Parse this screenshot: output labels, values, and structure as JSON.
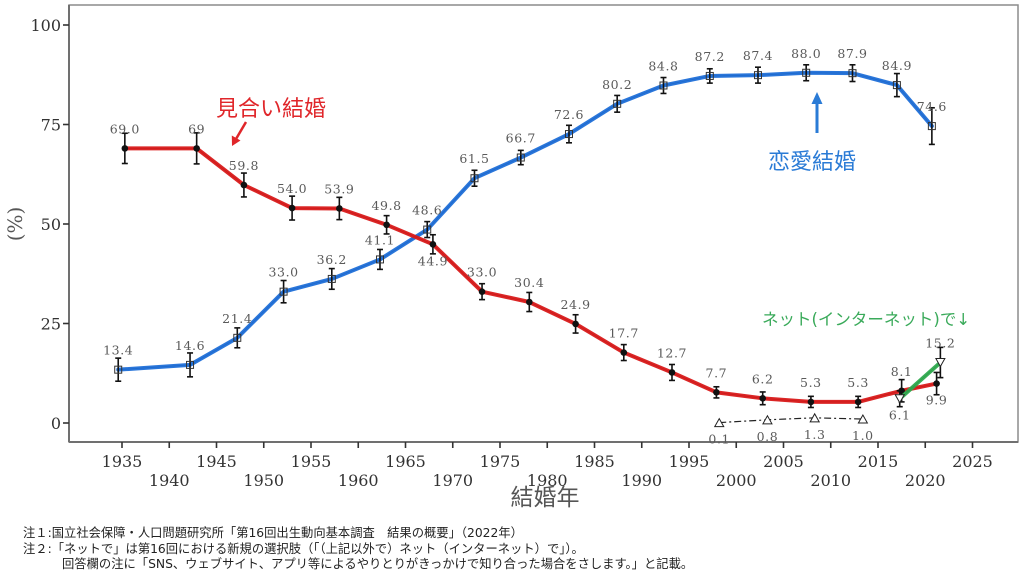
{
  "chart_data": {
    "type": "line",
    "title": "",
    "xlabel": "結婚年",
    "ylabel": "(%)",
    "xlim": [
      1929.4,
      2029.8
    ],
    "ylim": [
      -4.8,
      105
    ],
    "grid": false,
    "x_ticks": [
      1935,
      1940,
      1945,
      1950,
      1955,
      1960,
      1965,
      1970,
      1975,
      1980,
      1985,
      1990,
      1995,
      2000,
      2005,
      2010,
      2015,
      2020,
      2025
    ],
    "y_ticks": [
      0,
      25,
      50,
      75,
      100
    ],
    "series": [
      {
        "name": "恋愛結婚",
        "color": "#1f6fd8",
        "marker": "square",
        "x": [
          1934.6,
          1942.2,
          1947.2,
          1952.1,
          1957.2,
          1962.3,
          1967.3,
          1972.3,
          1977.2,
          1982.3,
          1987.4,
          1992.3,
          1997.2,
          2002.3,
          2007.4,
          2012.3,
          2017.0,
          2020.7
        ],
        "values": [
          13.4,
          14.6,
          21.4,
          33.0,
          36.2,
          41.1,
          48.6,
          61.5,
          66.7,
          72.6,
          80.2,
          84.8,
          87.2,
          87.4,
          88.0,
          87.9,
          84.9,
          74.6
        ],
        "labels": [
          "13.4",
          "14.6",
          "21.4",
          "33.0",
          "36.2",
          "41.1",
          "48.6",
          "61.5",
          "66.7",
          "72.6",
          "80.2",
          "84.8",
          "87.2",
          "87.4",
          "88.0",
          "87.9",
          "84.9",
          "74.6"
        ],
        "error": [
          2.9,
          3.0,
          2.5,
          2.8,
          2.6,
          2.5,
          2.0,
          2.0,
          1.8,
          2.2,
          2.1,
          2.0,
          1.8,
          2.0,
          2.0,
          2.1,
          2.9,
          4.6
        ],
        "segments": [
          {
            "from": 0,
            "to": 17,
            "style": "solid",
            "color": "#1f6fd8"
          }
        ]
      },
      {
        "name": "見合い結婚",
        "color": "#d91a1a",
        "marker": "circle",
        "x": [
          1935.3,
          1942.9,
          1947.9,
          1953.0,
          1958.0,
          1963.0,
          1967.9,
          1973.1,
          1978.1,
          1983.0,
          1988.1,
          1993.2,
          1997.9,
          2002.8,
          2007.9,
          2012.9,
          2017.5,
          2021.2
        ],
        "values": [
          69.0,
          69.0,
          59.8,
          54.0,
          53.9,
          49.8,
          44.9,
          33.0,
          30.4,
          24.9,
          17.7,
          12.7,
          7.7,
          6.2,
          5.3,
          5.3,
          8.1,
          9.9
        ],
        "labels": [
          "69.0",
          "69",
          "59.8",
          "54.0",
          "53.9",
          "49.8",
          "44.9",
          "33.0",
          "30.4",
          "24.9",
          "17.7",
          "12.7",
          "7.7",
          "6.2",
          "5.3",
          "5.3",
          "8.1",
          "9.9"
        ],
        "error": [
          3.8,
          3.9,
          3.0,
          3.0,
          2.8,
          2.3,
          2.4,
          2.0,
          2.4,
          2.3,
          2.0,
          2.0,
          1.4,
          1.6,
          1.4,
          1.4,
          2.8,
          2.8
        ],
        "segments": [
          {
            "from": 0,
            "to": 17,
            "style": "solid",
            "color": "#d91a1a"
          }
        ]
      },
      {
        "name": "ネット(インターネット)で",
        "color": "#2eaa4e",
        "marker": "triangle",
        "x": [
          1998.2,
          2003.3,
          2008.3,
          2013.4,
          2017.3,
          2021.6
        ],
        "values": [
          0.1,
          0.8,
          1.3,
          1.0,
          6.1,
          15.2
        ],
        "labels": [
          "0.1",
          "0.8",
          "1.3",
          "1.0",
          "6.1",
          "15.2"
        ],
        "error": [
          0,
          0,
          0,
          0,
          2.0,
          3.8
        ],
        "segments": [
          {
            "from": 0,
            "to": 3,
            "style": "dashdot",
            "color": "#222222"
          },
          {
            "from": 4,
            "to": 5,
            "style": "solid",
            "color": "#2eaa4e"
          }
        ]
      }
    ],
    "annotations": {
      "miai": {
        "text": "見合い結婚",
        "color": "#e0262a"
      },
      "renai": {
        "text": "恋愛結婚",
        "color": "#2a7bd6"
      },
      "net": {
        "text": "ネット(インターネット)で↓",
        "color": "#3aaa5a"
      }
    }
  },
  "notes": [
    "注１:国立社会保障・人口問題研究所「第16回出生動向基本調査　結果の概要」（2022年）",
    "注２:「ネットで」は第16回における新規の選択肢（「（上記以外で）ネット（インターネット）で」）。",
    "回答欄の注に「SNS、ウェブサイト、アプリ等によるやりとりがきっかけで知り合った場合をさします。」と記載。"
  ]
}
